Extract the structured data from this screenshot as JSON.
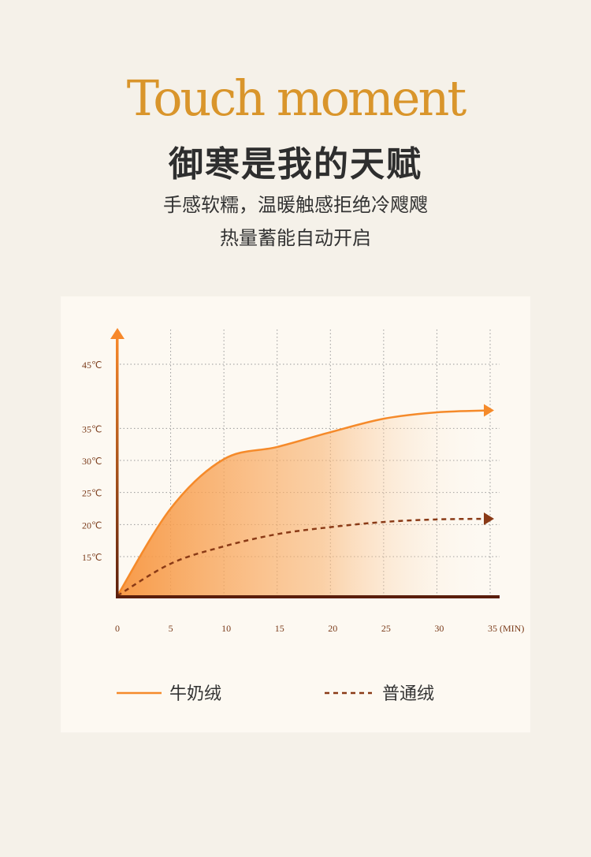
{
  "header": {
    "brand": "Touch moment",
    "title": "御寒是我的天赋",
    "subtitle_line1": "手感软糯，温暖触感拒绝冷飕飕",
    "subtitle_line2": "热量蓄能自动开启"
  },
  "chart_data": {
    "type": "line",
    "x": [
      0,
      5,
      10,
      15,
      20,
      25,
      30,
      35
    ],
    "x_tick_labels": [
      "0",
      "5",
      "10",
      "15",
      "20",
      "25",
      "30",
      "35 (MIN)"
    ],
    "y_tick_labels": [
      "45℃",
      "35℃",
      "30℃",
      "25℃",
      "20℃",
      "15℃"
    ],
    "y_ticks": [
      45,
      35,
      30,
      25,
      20,
      15
    ],
    "xlim": [
      0,
      35
    ],
    "ylim": [
      8.9,
      50
    ],
    "grid": true,
    "legend_placement": "bottom",
    "series": [
      {
        "name": "牛奶绒",
        "values": [
          8.9,
          22.5,
          30.2,
          32.1,
          34.4,
          36.5,
          37.5,
          37.8
        ],
        "color": "#f58a2a",
        "style": "solid"
      },
      {
        "name": "普通绒",
        "values": [
          8.9,
          13.9,
          16.6,
          18.5,
          19.6,
          20.4,
          20.8,
          20.9
        ],
        "color": "#8a3a16",
        "style": "dashed"
      }
    ]
  },
  "colors": {
    "axis": "#5a1e0c",
    "brand": "#d9952b",
    "background": "#f5f1e9",
    "card": "#fdf9f2"
  }
}
